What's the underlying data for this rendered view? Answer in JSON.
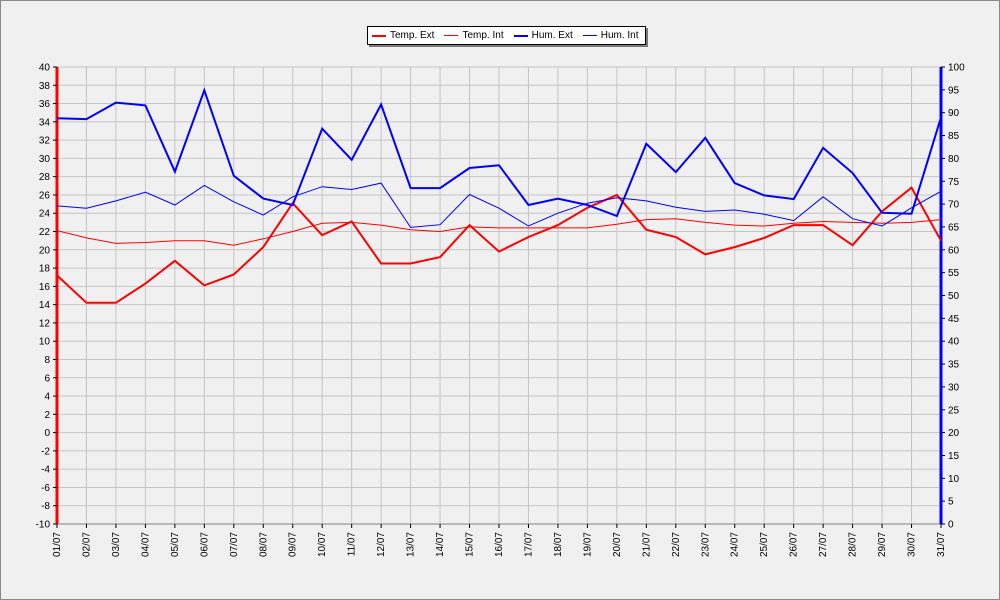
{
  "chart_data": {
    "type": "line",
    "x": [
      "01/07",
      "02/07",
      "03/07",
      "04/07",
      "05/07",
      "06/07",
      "07/07",
      "08/07",
      "09/07",
      "10/07",
      "11/07",
      "12/07",
      "13/07",
      "14/07",
      "15/07",
      "16/07",
      "17/07",
      "18/07",
      "19/07",
      "20/07",
      "21/07",
      "22/07",
      "23/07",
      "24/07",
      "25/07",
      "26/07",
      "27/07",
      "28/07",
      "29/07",
      "30/07",
      "31/07"
    ],
    "left_axis": {
      "ylim": [
        -10,
        40
      ],
      "ticks": [
        "40",
        "38",
        "36",
        "34",
        "32",
        "30",
        "28",
        "26",
        "24",
        "22",
        "20",
        "18",
        "16",
        "14",
        "12",
        "10",
        "8",
        "6",
        "4",
        "2",
        "0",
        "-2",
        "-4",
        "-6",
        "-8",
        "-10"
      ],
      "color": "#ff0000"
    },
    "right_axis": {
      "ylim": [
        0,
        100
      ],
      "ticks": [
        "100",
        "95",
        "90",
        "85",
        "80",
        "75",
        "70",
        "65",
        "60",
        "55",
        "50",
        "45",
        "40",
        "35",
        "30",
        "25",
        "20",
        "15",
        "10",
        "5",
        "0"
      ],
      "color": "#0000ff"
    },
    "grid": true,
    "legend_position": "top-center",
    "series": [
      {
        "name": "Temp. Ext",
        "axis": "left",
        "color": "#ff0000",
        "width": 2,
        "values": [
          17.2,
          14.2,
          14.2,
          16.3,
          18.8,
          16.1,
          17.3,
          20.3,
          25.1,
          21.6,
          23.1,
          18.5,
          18.5,
          19.2,
          22.7,
          19.8,
          21.4,
          22.7,
          24.6,
          26.0,
          22.2,
          21.4,
          19.5,
          20.3,
          21.3,
          22.7,
          22.7,
          20.5,
          24.2,
          26.8,
          21.0
        ]
      },
      {
        "name": "Temp. Int",
        "axis": "left",
        "color": "#ff0000",
        "width": 1,
        "values": [
          22.1,
          21.3,
          20.7,
          20.8,
          21.0,
          21.0,
          20.5,
          21.2,
          22.0,
          22.9,
          23.0,
          22.7,
          22.2,
          22.0,
          22.5,
          22.4,
          22.4,
          22.4,
          22.4,
          22.8,
          23.3,
          23.4,
          23.0,
          22.7,
          22.6,
          22.9,
          23.1,
          23.0,
          22.9,
          23.0,
          23.3
        ]
      },
      {
        "name": "Hum. Ext",
        "axis": "right",
        "color": "#0000ff",
        "width": 2,
        "values": [
          88.8,
          88.6,
          92.2,
          91.6,
          77.1,
          94.9,
          76.2,
          71.2,
          69.8,
          86.5,
          79.7,
          91.8,
          73.5,
          73.5,
          77.9,
          78.5,
          69.8,
          71.2,
          69.8,
          67.4,
          83.2,
          77.0,
          84.5,
          74.6,
          71.9,
          71.1,
          82.3,
          76.8,
          68.1,
          67.9,
          89.0
        ]
      },
      {
        "name": "Hum. Int",
        "axis": "right",
        "color": "#0000ff",
        "width": 1,
        "values": [
          69.6,
          69.1,
          70.7,
          72.6,
          69.8,
          74.1,
          70.5,
          67.6,
          71.6,
          73.8,
          73.2,
          74.6,
          64.9,
          65.5,
          72.1,
          69.1,
          65.2,
          68.0,
          70.2,
          71.4,
          70.7,
          69.3,
          68.4,
          68.7,
          67.8,
          66.4,
          71.6,
          66.8,
          65.2,
          69.2,
          72.8
        ]
      }
    ]
  }
}
